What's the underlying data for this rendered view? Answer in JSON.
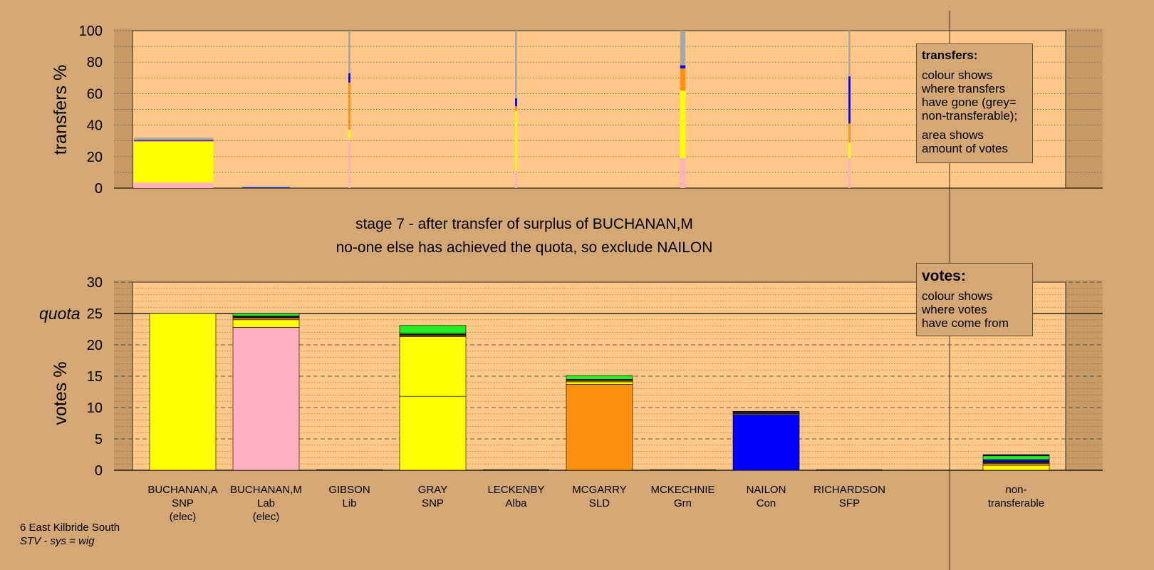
{
  "chart_data": [
    {
      "type": "bar",
      "name": "transfers",
      "ylabel": "transfers %",
      "ylim": [
        0,
        100
      ],
      "yticks": [
        0,
        20,
        40,
        60,
        80,
        100
      ],
      "grid": true,
      "colors": {
        "SNP": "#FFFF00",
        "Lab": "#FFB0C0",
        "Lib": "#FF9010",
        "Alba": "#000000",
        "SLD": "#FF9010",
        "Grn": "#22EE22",
        "Con": "#0000FF",
        "SFP": "#202020",
        "nt": "#A8A8A8"
      },
      "columns": [
        {
          "candidate": "BUCHANAN,A",
          "bar_width": 1.2,
          "segments": [
            [
              "Lab",
              3.5
            ],
            [
              "SNP",
              26
            ],
            [
              "SLD",
              0.5
            ],
            [
              "Con",
              0.5
            ],
            [
              "nt",
              1.5
            ]
          ]
        },
        {
          "candidate": "BUCHANAN,M",
          "bar_width": 0.72,
          "segments": [
            [
              "Con",
              0.5
            ],
            [
              "nt",
              0.5
            ]
          ]
        },
        {
          "candidate": "GIBSON",
          "bar_width": 0.03,
          "segments": [
            [
              "Lab",
              31
            ],
            [
              "SNP",
              6
            ],
            [
              "SLD",
              30
            ],
            [
              "Con",
              6
            ],
            [
              "nt",
              27
            ]
          ]
        },
        {
          "candidate": "LECKENBY",
          "bar_width": 0.03,
          "segments": [
            [
              "Lab",
              11
            ],
            [
              "SNP",
              38
            ],
            [
              "SLD",
              3
            ],
            [
              "Con",
              5
            ],
            [
              "nt",
              43
            ]
          ]
        },
        {
          "candidate": "MCKECHNIE",
          "bar_width": 0.08,
          "segments": [
            [
              "Lab",
              19
            ],
            [
              "SNP",
              43
            ],
            [
              "SLD",
              14
            ],
            [
              "Con",
              2
            ],
            [
              "nt",
              22
            ]
          ]
        },
        {
          "candidate": "RICHARDSON",
          "bar_width": 0.03,
          "segments": [
            [
              "Lab",
              19
            ],
            [
              "SNP",
              10
            ],
            [
              "SLD",
              12
            ],
            [
              "Con",
              30
            ],
            [
              "nt",
              29
            ]
          ]
        }
      ],
      "legend": {
        "title": "transfers:",
        "lines": [
          "colour shows\nwhere transfers\nhave gone (grey=\nnon-transferable);",
          "area shows\namount of votes"
        ]
      }
    },
    {
      "type": "bar",
      "name": "votes",
      "ylabel": "votes %",
      "ylim": [
        0,
        30
      ],
      "yticks": [
        0,
        5,
        10,
        15,
        20,
        25,
        30
      ],
      "quota": 25,
      "quota_label": "quota",
      "grid": true,
      "categories": [
        {
          "name": "BUCHANAN,A",
          "party": "SNP",
          "note": "(elec)"
        },
        {
          "name": "BUCHANAN,M",
          "party": "Lab",
          "note": "(elec)"
        },
        {
          "name": "GIBSON",
          "party": "Lib",
          "note": ""
        },
        {
          "name": "GRAY",
          "party": "SNP",
          "note": ""
        },
        {
          "name": "LECKENBY",
          "party": "Alba",
          "note": ""
        },
        {
          "name": "MCGARRY",
          "party": "SLD",
          "note": ""
        },
        {
          "name": "MCKECHNIE",
          "party": "Grn",
          "note": ""
        },
        {
          "name": "NAILON",
          "party": "Con",
          "note": ""
        },
        {
          "name": "RICHARDSON",
          "party": "SFP",
          "note": ""
        },
        {
          "name": "",
          "party": "",
          "note": ""
        },
        {
          "name": "non-",
          "party": "transferable",
          "note": ""
        }
      ],
      "stacks": [
        [
          [
            "#FFFF00",
            25.0
          ]
        ],
        [
          [
            "#FFB0C0",
            22.8
          ],
          [
            "#FFFF00",
            1.2
          ],
          [
            "#FF9010",
            0.3
          ],
          [
            "#202020",
            0.15
          ],
          [
            "#0000FF",
            0.15
          ],
          [
            "#22EE22",
            0.4
          ]
        ],
        [],
        [
          [
            "#FFFF00",
            11.8
          ],
          [
            "#FFFF00",
            9.5
          ],
          [
            "#FF9010",
            0.2
          ],
          [
            "#202020",
            0.2
          ],
          [
            "#22EE22",
            0.2
          ],
          [
            "#22EE22",
            1.2
          ]
        ],
        [],
        [
          [
            "#FF9010",
            13.7
          ],
          [
            "#FFFF00",
            0.4
          ],
          [
            "#FF9010",
            0.2
          ],
          [
            "#202020",
            0.2
          ],
          [
            "#22EE22",
            0.6
          ]
        ],
        [],
        [
          [
            "#0000FF",
            8.8
          ],
          [
            "#8060A0",
            0.2
          ],
          [
            "#202020",
            0.4
          ]
        ],
        [],
        [],
        [
          [
            "#FFFF00",
            0.8
          ],
          [
            "#FF9010",
            0.3
          ],
          [
            "#202020",
            0.3
          ],
          [
            "#0000FF",
            0.3
          ],
          [
            "#22EE22",
            0.6
          ],
          [
            "#202020",
            0.2
          ]
        ]
      ],
      "legend": {
        "title": "votes:",
        "lines": [
          "colour shows\nwhere votes\nhave come from"
        ]
      }
    }
  ],
  "caption": {
    "line1": "stage 7 - after transfer of surplus of BUCHANAN,M",
    "line2": "no-one else has achieved the quota, so exclude NAILON"
  },
  "footer": {
    "ward": "6 East Kilbride South",
    "system": "STV - sys = wig"
  }
}
